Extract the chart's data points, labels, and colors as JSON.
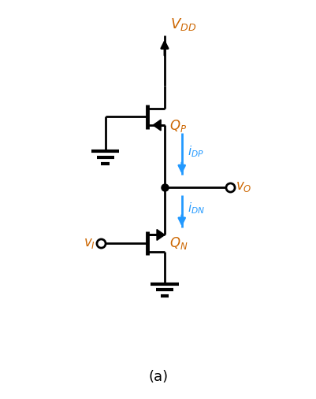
{
  "background_color": "#ffffff",
  "line_color": "#000000",
  "blue_color": "#2299ff",
  "orange_color": "#cc6600",
  "label_a": "(a)",
  "label_vdd": "$V_{DD}$",
  "label_qp": "$Q_P$",
  "label_qn": "$Q_N$",
  "label_idp": "$i_{DP}$",
  "label_idn": "$i_{DN}$",
  "label_vo": "$v_O$",
  "label_vi": "$v_I$",
  "fig_width": 4.02,
  "fig_height": 5.07,
  "dpi": 100
}
